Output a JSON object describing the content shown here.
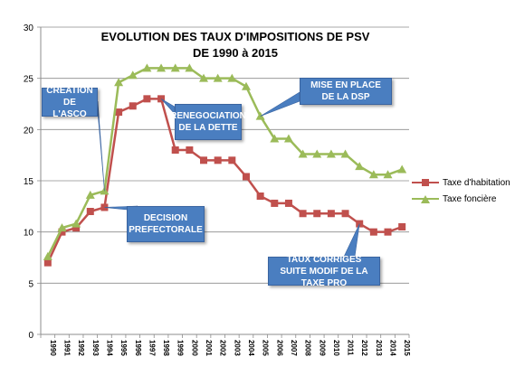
{
  "chart_data": {
    "type": "line",
    "title": "EVOLUTION DES TAUX D'IMPOSITIONS DE PSV",
    "subtitle": "DE 1990 à 2015",
    "xlabel": "",
    "ylabel": "",
    "ylim": [
      0,
      30
    ],
    "yticks": [
      0,
      5,
      10,
      15,
      20,
      25,
      30
    ],
    "grid": true,
    "legend_position": "right",
    "x": [
      "1990",
      "1991",
      "1992",
      "1993",
      "1994",
      "1995",
      "1996",
      "1997",
      "1998",
      "1999",
      "2000",
      "2001",
      "2002",
      "2003",
      "2004",
      "2005",
      "2006",
      "2007",
      "2008",
      "2009",
      "2010",
      "2011",
      "2012",
      "2013",
      "2014",
      "2015"
    ],
    "series": [
      {
        "name": "Taxe d'habitation",
        "color": "#c0504d",
        "marker": "square",
        "values": [
          7.0,
          10.0,
          10.4,
          12.0,
          12.4,
          21.7,
          22.3,
          23.0,
          23.0,
          18.0,
          18.0,
          17.0,
          17.0,
          17.0,
          15.4,
          13.5,
          12.8,
          12.8,
          11.8,
          11.8,
          11.8,
          11.8,
          10.8,
          10.0,
          10.0,
          10.5
        ]
      },
      {
        "name": "Taxe foncière",
        "color": "#9bbb59",
        "marker": "triangle",
        "values": [
          7.6,
          10.4,
          10.8,
          13.6,
          14.0,
          24.6,
          25.3,
          26.0,
          26.0,
          26.0,
          26.0,
          25.0,
          25.0,
          25.0,
          24.2,
          21.3,
          19.1,
          19.1,
          17.6,
          17.6,
          17.6,
          17.6,
          16.4,
          15.6,
          15.6,
          16.1
        ]
      }
    ],
    "annotations": [
      {
        "id": "asco",
        "text": "CREATION DE L'ASCO",
        "target_year": "1994",
        "target_series": 1
      },
      {
        "id": "decision",
        "text": "DECISION PREFECTORALE",
        "target_year": "1994",
        "target_series": 0
      },
      {
        "id": "dette",
        "text": "RENEGOCIATION DE LA DETTE",
        "target_year": "1998",
        "target_series": 0
      },
      {
        "id": "dsp",
        "text": "MISE EN PLACE DE LA DSP",
        "target_year": "2005",
        "target_series": 1
      },
      {
        "id": "taux",
        "text": "TAUX CORRIGES SUITE MODIF DE LA TAXE PRO",
        "target_year": "2012",
        "target_series": 0
      }
    ]
  }
}
